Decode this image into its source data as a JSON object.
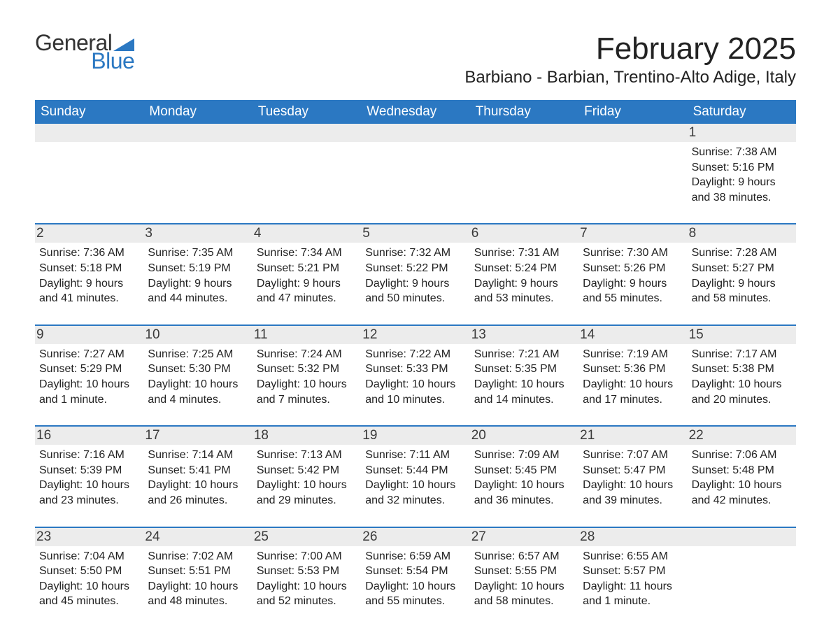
{
  "logo": {
    "text_general": "General",
    "text_blue": "Blue",
    "wedge_color": "#2b78c2"
  },
  "month_title": "February 2025",
  "location": "Barbiano - Barbian, Trentino-Alto Adige, Italy",
  "colors": {
    "header_bg": "#2b78c2",
    "header_text": "#ffffff",
    "daynum_bg": "#ececec",
    "text": "#222222",
    "border": "#2b78c2"
  },
  "fonts": {
    "title_pt": 44,
    "location_pt": 24,
    "weekday_pt": 19,
    "body_pt": 16
  },
  "weekdays": [
    "Sunday",
    "Monday",
    "Tuesday",
    "Wednesday",
    "Thursday",
    "Friday",
    "Saturday"
  ],
  "weeks": [
    [
      {
        "blank": true
      },
      {
        "blank": true
      },
      {
        "blank": true
      },
      {
        "blank": true
      },
      {
        "blank": true
      },
      {
        "blank": true
      },
      {
        "day": "1",
        "sunrise": "Sunrise: 7:38 AM",
        "sunset": "Sunset: 5:16 PM",
        "dl1": "Daylight: 9 hours",
        "dl2": "and 38 minutes."
      }
    ],
    [
      {
        "day": "2",
        "sunrise": "Sunrise: 7:36 AM",
        "sunset": "Sunset: 5:18 PM",
        "dl1": "Daylight: 9 hours",
        "dl2": "and 41 minutes."
      },
      {
        "day": "3",
        "sunrise": "Sunrise: 7:35 AM",
        "sunset": "Sunset: 5:19 PM",
        "dl1": "Daylight: 9 hours",
        "dl2": "and 44 minutes."
      },
      {
        "day": "4",
        "sunrise": "Sunrise: 7:34 AM",
        "sunset": "Sunset: 5:21 PM",
        "dl1": "Daylight: 9 hours",
        "dl2": "and 47 minutes."
      },
      {
        "day": "5",
        "sunrise": "Sunrise: 7:32 AM",
        "sunset": "Sunset: 5:22 PM",
        "dl1": "Daylight: 9 hours",
        "dl2": "and 50 minutes."
      },
      {
        "day": "6",
        "sunrise": "Sunrise: 7:31 AM",
        "sunset": "Sunset: 5:24 PM",
        "dl1": "Daylight: 9 hours",
        "dl2": "and 53 minutes."
      },
      {
        "day": "7",
        "sunrise": "Sunrise: 7:30 AM",
        "sunset": "Sunset: 5:26 PM",
        "dl1": "Daylight: 9 hours",
        "dl2": "and 55 minutes."
      },
      {
        "day": "8",
        "sunrise": "Sunrise: 7:28 AM",
        "sunset": "Sunset: 5:27 PM",
        "dl1": "Daylight: 9 hours",
        "dl2": "and 58 minutes."
      }
    ],
    [
      {
        "day": "9",
        "sunrise": "Sunrise: 7:27 AM",
        "sunset": "Sunset: 5:29 PM",
        "dl1": "Daylight: 10 hours",
        "dl2": "and 1 minute."
      },
      {
        "day": "10",
        "sunrise": "Sunrise: 7:25 AM",
        "sunset": "Sunset: 5:30 PM",
        "dl1": "Daylight: 10 hours",
        "dl2": "and 4 minutes."
      },
      {
        "day": "11",
        "sunrise": "Sunrise: 7:24 AM",
        "sunset": "Sunset: 5:32 PM",
        "dl1": "Daylight: 10 hours",
        "dl2": "and 7 minutes."
      },
      {
        "day": "12",
        "sunrise": "Sunrise: 7:22 AM",
        "sunset": "Sunset: 5:33 PM",
        "dl1": "Daylight: 10 hours",
        "dl2": "and 10 minutes."
      },
      {
        "day": "13",
        "sunrise": "Sunrise: 7:21 AM",
        "sunset": "Sunset: 5:35 PM",
        "dl1": "Daylight: 10 hours",
        "dl2": "and 14 minutes."
      },
      {
        "day": "14",
        "sunrise": "Sunrise: 7:19 AM",
        "sunset": "Sunset: 5:36 PM",
        "dl1": "Daylight: 10 hours",
        "dl2": "and 17 minutes."
      },
      {
        "day": "15",
        "sunrise": "Sunrise: 7:17 AM",
        "sunset": "Sunset: 5:38 PM",
        "dl1": "Daylight: 10 hours",
        "dl2": "and 20 minutes."
      }
    ],
    [
      {
        "day": "16",
        "sunrise": "Sunrise: 7:16 AM",
        "sunset": "Sunset: 5:39 PM",
        "dl1": "Daylight: 10 hours",
        "dl2": "and 23 minutes."
      },
      {
        "day": "17",
        "sunrise": "Sunrise: 7:14 AM",
        "sunset": "Sunset: 5:41 PM",
        "dl1": "Daylight: 10 hours",
        "dl2": "and 26 minutes."
      },
      {
        "day": "18",
        "sunrise": "Sunrise: 7:13 AM",
        "sunset": "Sunset: 5:42 PM",
        "dl1": "Daylight: 10 hours",
        "dl2": "and 29 minutes."
      },
      {
        "day": "19",
        "sunrise": "Sunrise: 7:11 AM",
        "sunset": "Sunset: 5:44 PM",
        "dl1": "Daylight: 10 hours",
        "dl2": "and 32 minutes."
      },
      {
        "day": "20",
        "sunrise": "Sunrise: 7:09 AM",
        "sunset": "Sunset: 5:45 PM",
        "dl1": "Daylight: 10 hours",
        "dl2": "and 36 minutes."
      },
      {
        "day": "21",
        "sunrise": "Sunrise: 7:07 AM",
        "sunset": "Sunset: 5:47 PM",
        "dl1": "Daylight: 10 hours",
        "dl2": "and 39 minutes."
      },
      {
        "day": "22",
        "sunrise": "Sunrise: 7:06 AM",
        "sunset": "Sunset: 5:48 PM",
        "dl1": "Daylight: 10 hours",
        "dl2": "and 42 minutes."
      }
    ],
    [
      {
        "day": "23",
        "sunrise": "Sunrise: 7:04 AM",
        "sunset": "Sunset: 5:50 PM",
        "dl1": "Daylight: 10 hours",
        "dl2": "and 45 minutes."
      },
      {
        "day": "24",
        "sunrise": "Sunrise: 7:02 AM",
        "sunset": "Sunset: 5:51 PM",
        "dl1": "Daylight: 10 hours",
        "dl2": "and 48 minutes."
      },
      {
        "day": "25",
        "sunrise": "Sunrise: 7:00 AM",
        "sunset": "Sunset: 5:53 PM",
        "dl1": "Daylight: 10 hours",
        "dl2": "and 52 minutes."
      },
      {
        "day": "26",
        "sunrise": "Sunrise: 6:59 AM",
        "sunset": "Sunset: 5:54 PM",
        "dl1": "Daylight: 10 hours",
        "dl2": "and 55 minutes."
      },
      {
        "day": "27",
        "sunrise": "Sunrise: 6:57 AM",
        "sunset": "Sunset: 5:55 PM",
        "dl1": "Daylight: 10 hours",
        "dl2": "and 58 minutes."
      },
      {
        "day": "28",
        "sunrise": "Sunrise: 6:55 AM",
        "sunset": "Sunset: 5:57 PM",
        "dl1": "Daylight: 11 hours",
        "dl2": "and 1 minute."
      },
      {
        "blank": true
      }
    ]
  ]
}
